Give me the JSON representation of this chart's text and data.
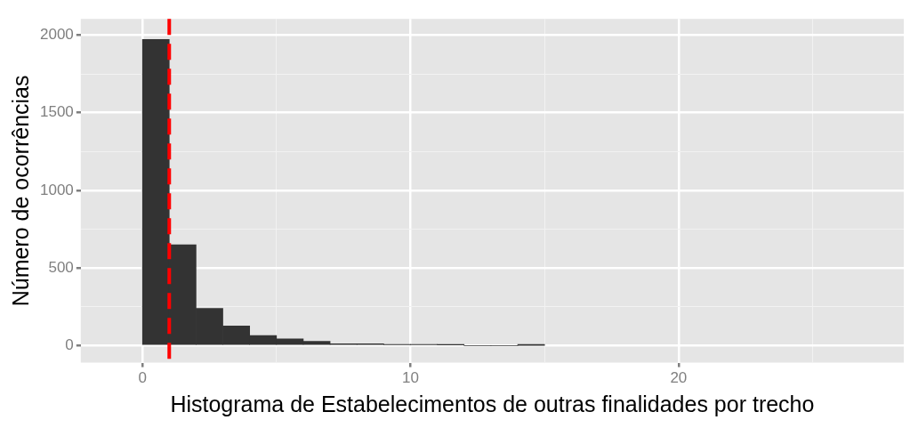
{
  "chart_data": {
    "type": "histogram",
    "xlabel": "Histograma de Estabelecimentos de outras finalidades por trecho",
    "ylabel": "Número de ocorrências",
    "bins": [
      0,
      1,
      2,
      3,
      4,
      5,
      6,
      7,
      8,
      9,
      10,
      11,
      12,
      13,
      14,
      15
    ],
    "values": [
      1972,
      650,
      240,
      126,
      65,
      43,
      28,
      12,
      12,
      5,
      5,
      4,
      0,
      0,
      2
    ],
    "color": "#333333",
    "xlim": [
      -2.3,
      28.4
    ],
    "ylim": [
      -110,
      2105
    ],
    "xticks": [
      0,
      {
        "value": 5,
        "label": null
      },
      10,
      {
        "value": 15,
        "label": null
      },
      20,
      {
        "value": 25,
        "label": null
      }
    ],
    "yticks": [
      0,
      {
        "value": 250,
        "label": null
      },
      500,
      {
        "value": 750,
        "label": null
      },
      1000,
      {
        "value": 1250,
        "label": null
      },
      1500,
      {
        "value": 1750,
        "label": null
      },
      2000
    ],
    "grid": true,
    "ref_lines": [
      {
        "axis": "x",
        "value": 1,
        "color": "#ff0000",
        "line_style": "dashed"
      }
    ]
  }
}
